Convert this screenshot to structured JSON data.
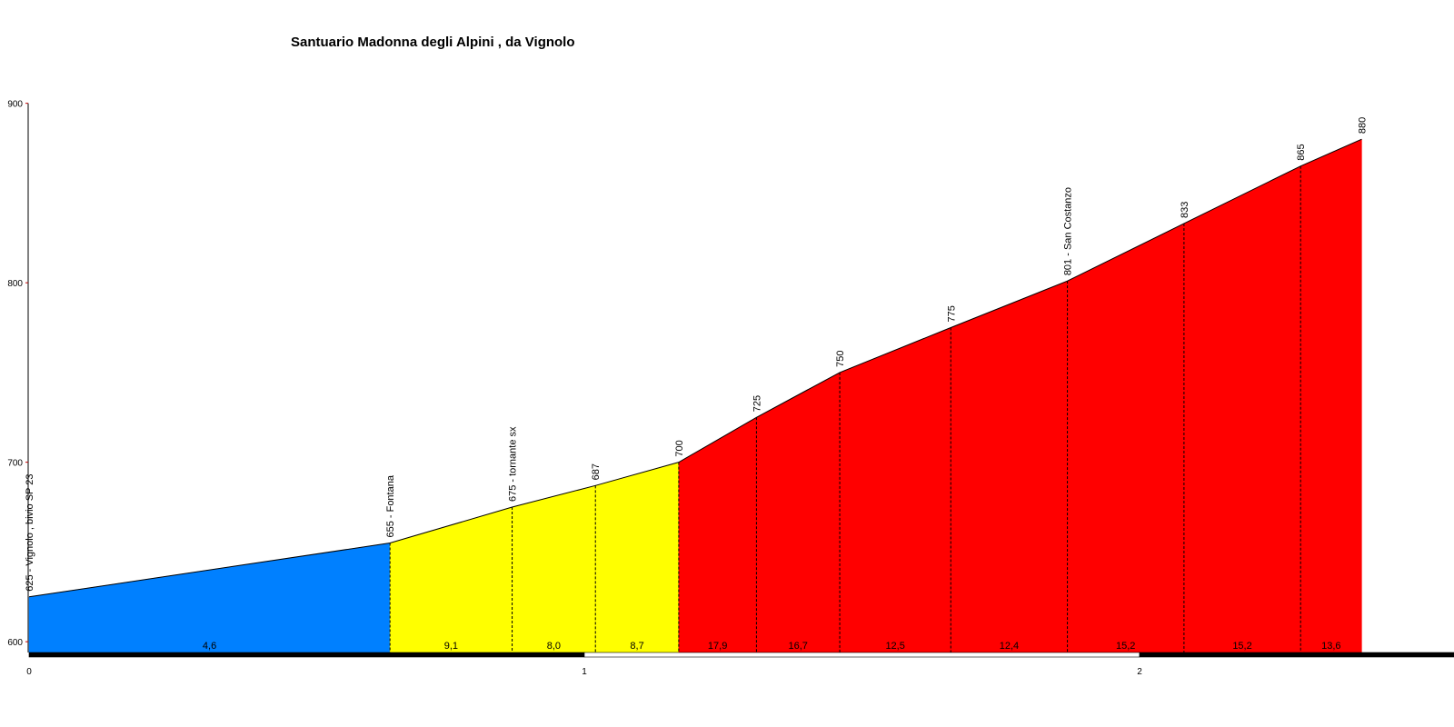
{
  "chart_data": {
    "type": "area",
    "title": "Santuario Madonna degli Alpini , da Vignolo",
    "x_ticks": [
      0,
      1,
      2
    ],
    "x_tick_labels": [
      "0",
      "1",
      "2"
    ],
    "y_ticks": [
      600,
      700,
      800,
      900
    ],
    "y_tick_labels": [
      "600",
      "700",
      "800",
      "900"
    ],
    "xlim": [
      0,
      2.52
    ],
    "ylim": [
      594,
      900
    ],
    "points": [
      {
        "x": 0.0,
        "y": 625,
        "label": "625 - Vignolo , bivio SP 23"
      },
      {
        "x": 0.65,
        "y": 655,
        "label": "655 - Fontana"
      },
      {
        "x": 0.87,
        "y": 675,
        "label": "675 - tornante sx"
      },
      {
        "x": 1.02,
        "y": 687,
        "label": "687"
      },
      {
        "x": 1.17,
        "y": 700,
        "label": "700"
      },
      {
        "x": 1.31,
        "y": 725,
        "label": "725"
      },
      {
        "x": 1.46,
        "y": 750,
        "label": "750"
      },
      {
        "x": 1.66,
        "y": 775,
        "label": "775"
      },
      {
        "x": 1.87,
        "y": 801,
        "label": "801 - San Costanzo"
      },
      {
        "x": 2.08,
        "y": 833,
        "label": "833"
      },
      {
        "x": 2.29,
        "y": 865,
        "label": "865"
      },
      {
        "x": 2.4,
        "y": 880,
        "label": "880"
      }
    ],
    "segments": [
      {
        "gradient": "4,6",
        "color": "#0080ff"
      },
      {
        "gradient": "9,1",
        "color": "#ffff00"
      },
      {
        "gradient": "8,0",
        "color": "#ffff00"
      },
      {
        "gradient": "8,7",
        "color": "#ffff00"
      },
      {
        "gradient": "17,9",
        "color": "#ff0000"
      },
      {
        "gradient": "16,7",
        "color": "#ff0000"
      },
      {
        "gradient": "12,5",
        "color": "#ff0000"
      },
      {
        "gradient": "12,4",
        "color": "#ff0000"
      },
      {
        "gradient": "15,2",
        "color": "#ff0000"
      },
      {
        "gradient": "15,2",
        "color": "#ff0000"
      },
      {
        "gradient": "13,6",
        "color": "#ff0000"
      }
    ],
    "grid": false
  }
}
